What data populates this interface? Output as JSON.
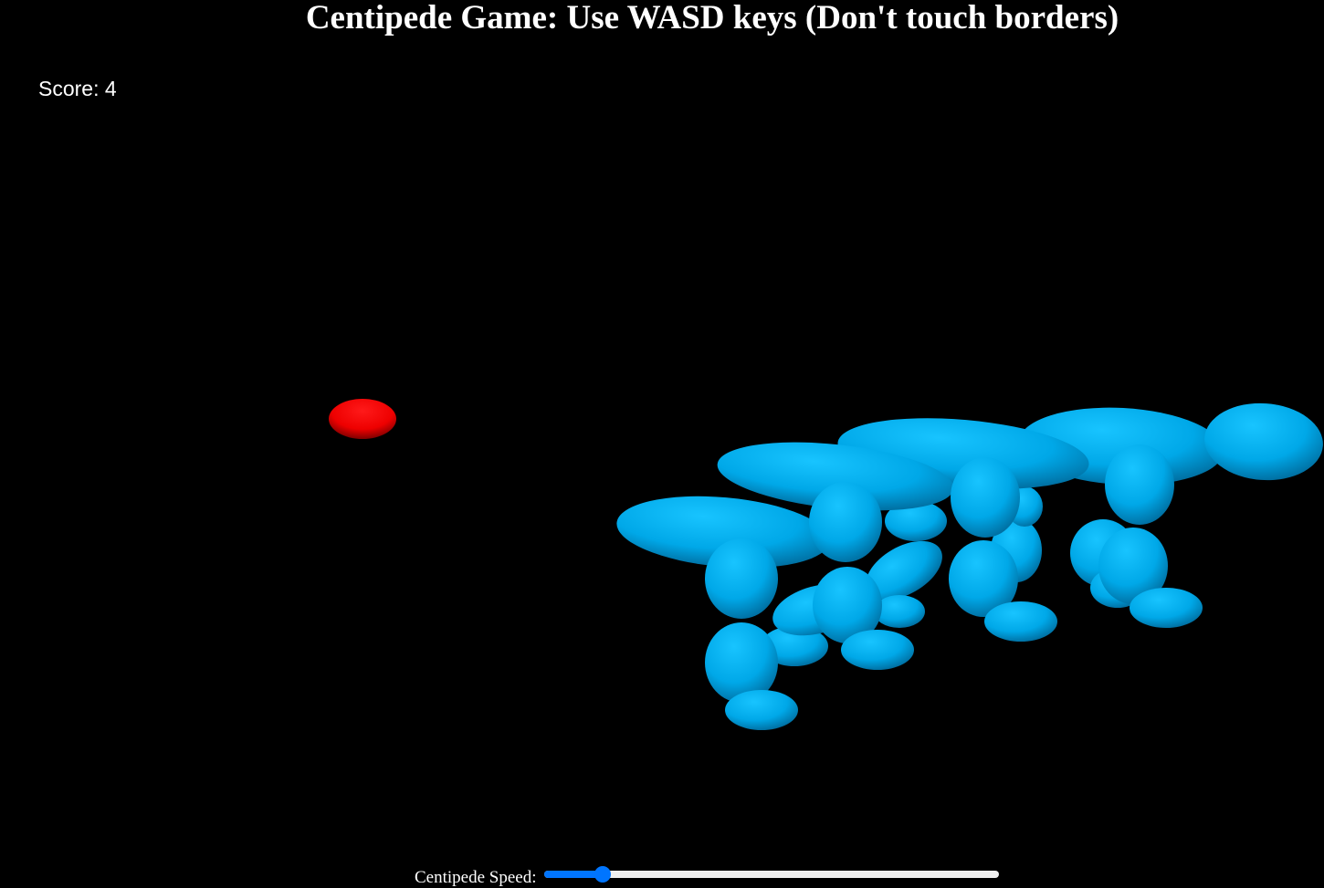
{
  "header": {
    "title": "Centipede Game: Use WASD keys (Don't touch borders)"
  },
  "hud": {
    "score_text": "Score: 4"
  },
  "controls": {
    "speed_label": "Centipede Speed:",
    "speed_value_fraction": 0.13
  },
  "colors": {
    "background": "#000000",
    "centipede": "#00aaee",
    "food": "#ff0000",
    "slider_accent": "#0075ff"
  }
}
